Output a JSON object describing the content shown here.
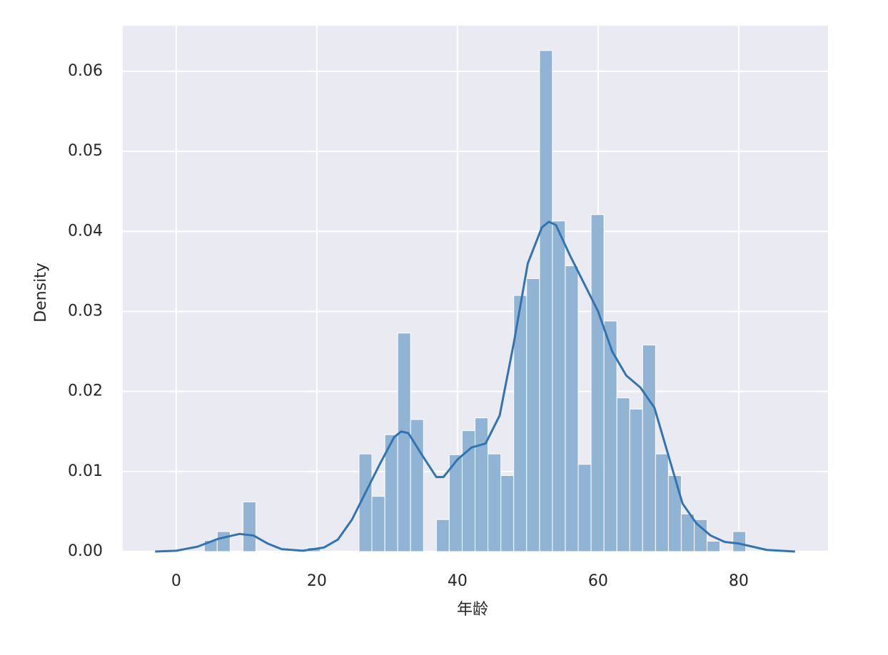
{
  "chart_data": {
    "type": "histogram",
    "xlabel": "年龄",
    "ylabel": "Density",
    "bins": [
      4,
      5.83,
      7.67,
      9.5,
      11.33,
      13.17,
      15,
      16.83,
      18.67,
      20.5,
      22.33,
      24.17,
      26,
      27.83,
      29.67,
      31.5,
      33.33,
      35.17,
      37,
      38.83,
      40.67,
      42.5,
      44.33,
      46.17,
      48,
      49.83,
      51.67,
      53.5,
      55.33,
      57.17,
      59,
      60.83,
      62.67,
      64.5,
      66.33,
      68.17,
      70,
      71.83,
      73.67,
      75.5,
      77.33,
      79.17,
      81
    ],
    "values": [
      0.0014,
      0.0025,
      0,
      0.0062,
      0,
      0,
      0,
      0,
      0.0005,
      0,
      0,
      0,
      0.0122,
      0.0069,
      0.0146,
      0.0273,
      0.0165,
      0,
      0.004,
      0.0121,
      0.0151,
      0.0167,
      0.0122,
      0.0095,
      0.032,
      0.0341,
      0.0626,
      0.0413,
      0.0357,
      0.0109,
      0.0421,
      0.0288,
      0.0192,
      0.0178,
      0.0258,
      0.0122,
      0.0095,
      0.0047,
      0.004,
      0.0013,
      0,
      0.0025
    ],
    "color": "#92b4d4",
    "kde": {
      "color": "#3274b0",
      "x": [
        -3,
        0,
        3,
        6,
        9,
        11,
        13,
        15,
        18,
        21,
        23,
        25,
        27,
        29,
        31,
        32,
        33,
        35,
        37,
        38,
        40,
        42,
        44,
        46,
        48,
        50,
        52,
        53,
        54,
        56,
        58,
        60,
        62,
        64,
        66,
        68,
        70,
        72,
        74,
        76,
        78,
        80,
        82,
        84,
        86,
        88
      ],
      "y": [
        0,
        0.0001,
        0.0006,
        0.0016,
        0.0022,
        0.002,
        0.001,
        0.0003,
        0.0001,
        0.0005,
        0.0015,
        0.004,
        0.0075,
        0.011,
        0.0143,
        0.015,
        0.0148,
        0.012,
        0.0093,
        0.0093,
        0.0115,
        0.013,
        0.0135,
        0.017,
        0.026,
        0.036,
        0.0405,
        0.0412,
        0.0408,
        0.037,
        0.0335,
        0.03,
        0.025,
        0.022,
        0.0205,
        0.018,
        0.012,
        0.006,
        0.0035,
        0.002,
        0.0012,
        0.001,
        0.0006,
        0.0002,
        0.0001,
        0
      ]
    },
    "xlim": [
      -7.6,
      92.7
    ],
    "ylim": [
      0,
      0.0657
    ],
    "xticks": [
      0,
      20,
      40,
      60,
      80
    ],
    "yticks": [
      {
        "value": 0,
        "label": "0.00"
      },
      {
        "value": 0.01,
        "label": "0.01"
      },
      {
        "value": 0.02,
        "label": "0.02"
      },
      {
        "value": 0.03,
        "label": "0.03"
      },
      {
        "value": 0.04,
        "label": "0.04"
      },
      {
        "value": 0.05,
        "label": "0.05"
      },
      {
        "value": 0.06,
        "label": "0.06"
      }
    ],
    "grid": true,
    "background": "#eaeaf2"
  }
}
